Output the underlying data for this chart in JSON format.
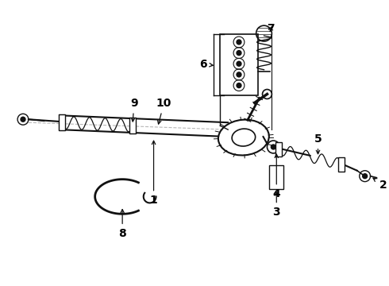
{
  "bg_color": "#ffffff",
  "line_color": "#111111",
  "label_color": "#000000",
  "fig_w": 4.9,
  "fig_h": 3.6,
  "dpi": 100
}
